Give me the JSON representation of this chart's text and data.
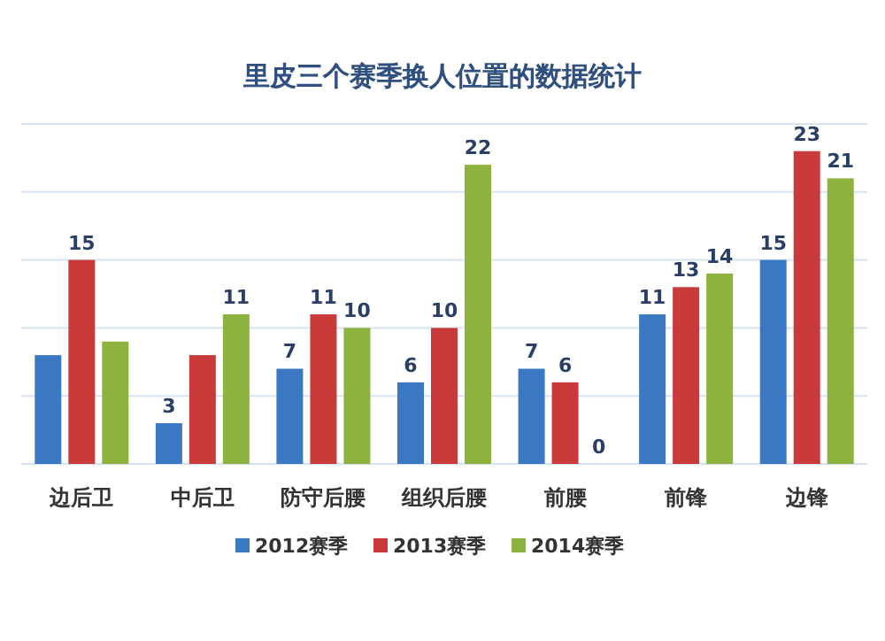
{
  "chart_data": {
    "type": "bar",
    "title": "里皮三个赛季换人位置的数据统计",
    "categories": [
      "边后卫",
      "中后卫",
      "防守后腰",
      "组织后腰",
      "前腰",
      "前锋",
      "边锋"
    ],
    "series": [
      {
        "name": "2012赛季",
        "color": "#3a78c3",
        "values": [
          8,
          3,
          7,
          6,
          7,
          11,
          15
        ],
        "value_labels": [
          null,
          "3",
          "7",
          "6",
          "7",
          "11",
          "15"
        ]
      },
      {
        "name": "2013赛季",
        "color": "#c93a3a",
        "values": [
          15,
          8,
          11,
          10,
          6,
          13,
          23
        ],
        "value_labels": [
          "15",
          null,
          "11",
          "10",
          "6",
          "13",
          "23"
        ]
      },
      {
        "name": "2014赛季",
        "color": "#8db33e",
        "values": [
          9,
          11,
          10,
          22,
          0,
          14,
          21
        ],
        "value_labels": [
          null,
          "11",
          "10",
          "22",
          "0",
          "14",
          "21"
        ]
      }
    ],
    "ylim": [
      0,
      25
    ],
    "yticks": [
      {
        "value": 0,
        "label": null
      },
      {
        "value": 5,
        "label": null
      },
      {
        "value": 10,
        "label": null
      },
      {
        "value": 15,
        "label": null
      },
      {
        "value": 20,
        "label": null
      },
      {
        "value": 25,
        "label": null
      }
    ],
    "grid": "y",
    "legend": "bottom"
  }
}
